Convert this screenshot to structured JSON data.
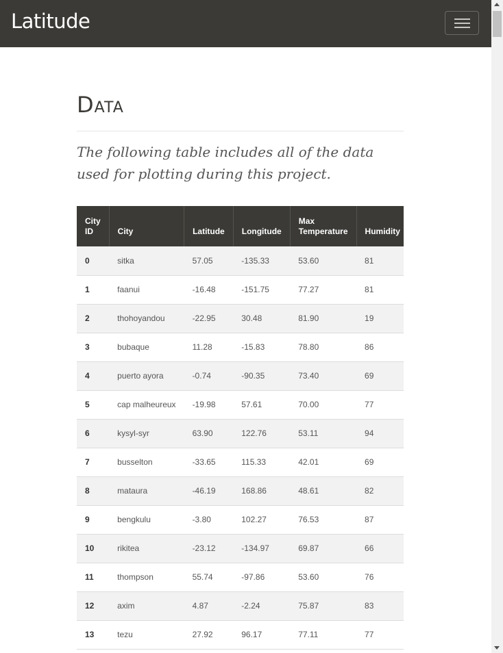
{
  "navbar": {
    "brand": "Latitude"
  },
  "page": {
    "heading": "Data",
    "lead": "The following table includes all of the data used for plotting during this project."
  },
  "table": {
    "headers": [
      "City ID",
      "City",
      "Latitude",
      "Longitude",
      "Max Temperature",
      "Humidity"
    ],
    "rows": [
      [
        "0",
        "sitka",
        "57.05",
        "-135.33",
        "53.60",
        "81"
      ],
      [
        "1",
        "faanui",
        "-16.48",
        "-151.75",
        "77.27",
        "81"
      ],
      [
        "2",
        "thohoyandou",
        "-22.95",
        "30.48",
        "81.90",
        "19"
      ],
      [
        "3",
        "bubaque",
        "11.28",
        "-15.83",
        "78.80",
        "86"
      ],
      [
        "4",
        "puerto ayora",
        "-0.74",
        "-90.35",
        "73.40",
        "69"
      ],
      [
        "5",
        "cap malheureux",
        "-19.98",
        "57.61",
        "70.00",
        "77"
      ],
      [
        "6",
        "kysyl-syr",
        "63.90",
        "122.76",
        "53.11",
        "94"
      ],
      [
        "7",
        "busselton",
        "-33.65",
        "115.33",
        "42.01",
        "69"
      ],
      [
        "8",
        "mataura",
        "-46.19",
        "168.86",
        "48.61",
        "82"
      ],
      [
        "9",
        "bengkulu",
        "-3.80",
        "102.27",
        "76.53",
        "87"
      ],
      [
        "10",
        "rikitea",
        "-23.12",
        "-134.97",
        "69.87",
        "66"
      ],
      [
        "11",
        "thompson",
        "55.74",
        "-97.86",
        "53.60",
        "76"
      ],
      [
        "12",
        "axim",
        "4.87",
        "-2.24",
        "75.87",
        "83"
      ],
      [
        "13",
        "tezu",
        "27.92",
        "96.17",
        "77.11",
        "77"
      ]
    ]
  },
  "icons": {
    "menu": "hamburger-icon"
  },
  "colors": {
    "navbar": "#3b3a36",
    "table_header": "#3b3a36"
  }
}
